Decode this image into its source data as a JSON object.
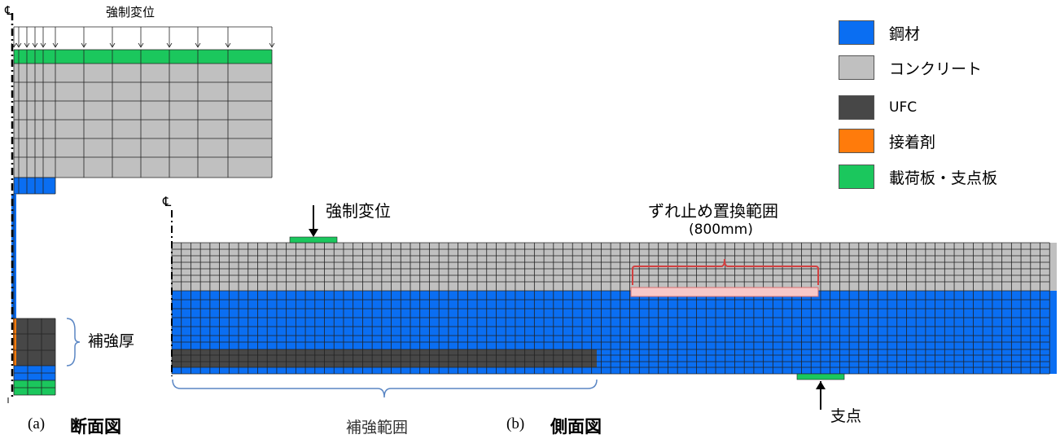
{
  "cross_section": {
    "top_label": "強制変位",
    "centerline": "℄",
    "thickness_label": "補強厚",
    "caption_prefix": "(a)",
    "caption": "断面図"
  },
  "side_view": {
    "centerline": "℄",
    "load_label": "強制変位",
    "stud_label": "ずれ止め置換範囲",
    "stud_length": "(800mm)",
    "reinforce_label": "補強範囲",
    "support_label": "支点",
    "caption_prefix": "(b)",
    "caption": "側面図"
  },
  "legend": [
    {
      "label": "鋼材",
      "color": "#0a6ef2"
    },
    {
      "label": "コンクリート",
      "color": "#c0c0c0"
    },
    {
      "label": "UFC",
      "color": "#474747"
    },
    {
      "label": "接着剤",
      "color": "#ff7b0b"
    },
    {
      "label": "載荷板・支点板",
      "color": "#1bc75d"
    }
  ],
  "colors": {
    "steel": "#0a6ef2",
    "concrete": "#c0c0c0",
    "ufc": "#474747",
    "adhesive": "#ff7b0b",
    "plate": "#1bc75d",
    "bracket_blue": "#5a86c4",
    "bracket_red": "#d04040"
  }
}
